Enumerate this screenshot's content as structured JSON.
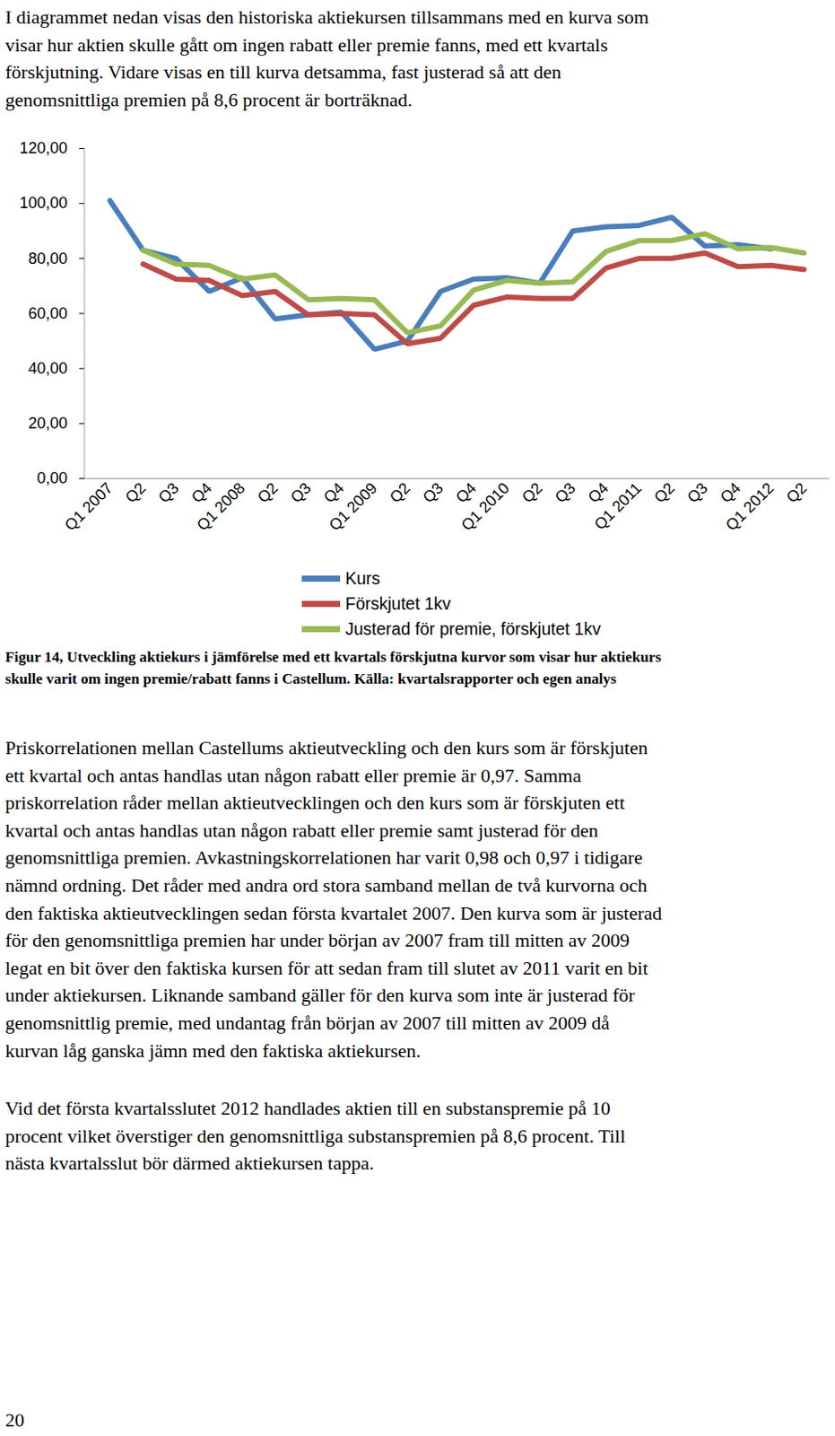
{
  "intro": [
    "I diagrammet nedan visas den historiska aktiekursen tillsammans med en kurva som",
    "visar hur aktien skulle gått om ingen rabatt eller premie fanns, med ett kvartals",
    "förskjutning. Vidare visas en till kurva detsamma, fast justerad så att den",
    "genomsnittliga premien på 8,6 procent är borträknad."
  ],
  "chart_data": {
    "type": "line",
    "categories": [
      "Q1 2007",
      "Q2",
      "Q3",
      "Q4",
      "Q1 2008",
      "Q2",
      "Q3",
      "Q4",
      "Q1 2009",
      "Q2",
      "Q3",
      "Q4",
      "Q1 2010",
      "Q2",
      "Q3",
      "Q4",
      "Q1 2011",
      "Q2",
      "Q3",
      "Q4",
      "Q1 2012",
      "Q2"
    ],
    "series": [
      {
        "name": "Kurs",
        "color": "#4a7ebb",
        "values": [
          101,
          83,
          80,
          68,
          73,
          58,
          59.5,
          60.5,
          47,
          50,
          68,
          72.5,
          73,
          71,
          90,
          91.5,
          92,
          95,
          84.5,
          85,
          83.5,
          null
        ]
      },
      {
        "name": "Förskjutet 1kv",
        "color": "#be4b48",
        "values": [
          null,
          78,
          72.5,
          72,
          66.5,
          68,
          59.5,
          60,
          59.5,
          49,
          51,
          63,
          66,
          65.5,
          65.5,
          76.5,
          80,
          80,
          82,
          77,
          77.5,
          76
        ]
      },
      {
        "name": "Justerad för premie, förskjutet 1kv",
        "color": "#98b954",
        "values": [
          null,
          83,
          78,
          77.5,
          72.5,
          74,
          65,
          65.5,
          65,
          53,
          55.5,
          68.5,
          72,
          71,
          71.5,
          82.5,
          86.5,
          86.5,
          89,
          83.5,
          84,
          82
        ]
      }
    ],
    "ylim": [
      0,
      120
    ],
    "yticks": [
      {
        "value": 0,
        "label": "0,00"
      },
      {
        "value": 20,
        "label": "20,00"
      },
      {
        "value": 40,
        "label": "40,00"
      },
      {
        "value": 60,
        "label": "60,00"
      },
      {
        "value": 80,
        "label": "80,00"
      },
      {
        "value": 100,
        "label": "100,00"
      },
      {
        "value": 120,
        "label": "120,00"
      }
    ],
    "grid": false,
    "legend": "bottom"
  },
  "caption": [
    "Figur 14, Utveckling aktiekurs i jämförelse med ett kvartals förskjutna kurvor som visar hur aktiekurs",
    "skulle varit om ingen premie/rabatt fanns i Castellum. Källa: kvartalsrapporter och egen analys"
  ],
  "paragraphs": [
    [
      "Priskorrelationen mellan Castellums aktieutveckling och den kurs som är förskjuten",
      "ett kvartal och antas handlas utan någon rabatt eller premie är 0,97. Samma",
      "priskorrelation råder mellan aktieutvecklingen och den kurs som är förskjuten ett",
      "kvartal och antas handlas utan någon rabatt eller premie samt justerad för den",
      "genomsnittliga premien. Avkastningskorrelationen har varit 0,98 och 0,97 i tidigare",
      "nämnd ordning. Det råder med andra ord stora samband mellan de två kurvorna och",
      "den faktiska aktieutvecklingen sedan första kvartalet 2007. Den kurva som är justerad",
      "för den genomsnittliga premien har under början av 2007 fram till mitten av 2009",
      "legat en bit över den faktiska kursen för att sedan fram till slutet av 2011 varit en bit",
      "under aktiekursen. Liknande samband gäller för den kurva som inte är justerad för",
      "genomsnittlig premie, med undantag från början av 2007 till mitten av 2009 då",
      "kurvan låg ganska jämn med den faktiska aktiekursen."
    ],
    [
      "Vid det första kvartalsslutet 2012 handlades aktien till en substanspremie på 10",
      "procent vilket överstiger den genomsnittliga substanspremien på 8,6 procent. Till",
      "nästa kvartalsslut bör därmed aktiekursen tappa."
    ]
  ],
  "page_number": "20"
}
